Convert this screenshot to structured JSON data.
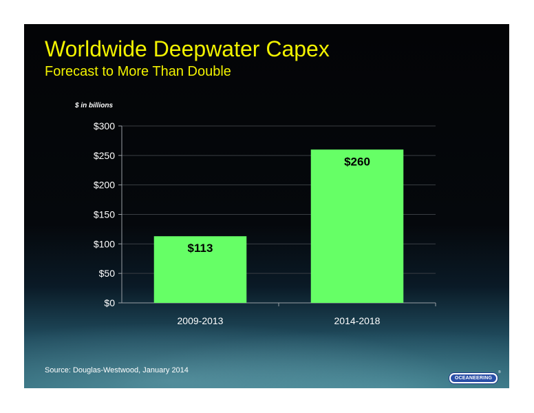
{
  "slide": {
    "title": "Worldwide Deepwater Capex",
    "subtitle": "Forecast to More Than Double",
    "source": "Source:  Douglas-Westwood, January 2014",
    "logo_text": "OCEANEERING",
    "logo_mark": "®"
  },
  "colors": {
    "title": "#f2f200",
    "bar": "#66ff66",
    "text": "#ffffff"
  },
  "chart_data": {
    "type": "bar",
    "title": "Worldwide Deepwater Capex",
    "subtitle": "Forecast to More Than Double",
    "unit_label": "$ in billions",
    "categories": [
      "2009-2013",
      "2014-2018"
    ],
    "values": [
      113,
      260
    ],
    "value_labels": [
      "$113",
      "$260"
    ],
    "ylim": [
      0,
      300
    ],
    "yticks": [
      0,
      50,
      100,
      150,
      200,
      250,
      300
    ],
    "ytick_labels": [
      "$0",
      "$50",
      "$100",
      "$150",
      "$200",
      "$250",
      "$300"
    ],
    "grid": true,
    "legend": "none"
  }
}
